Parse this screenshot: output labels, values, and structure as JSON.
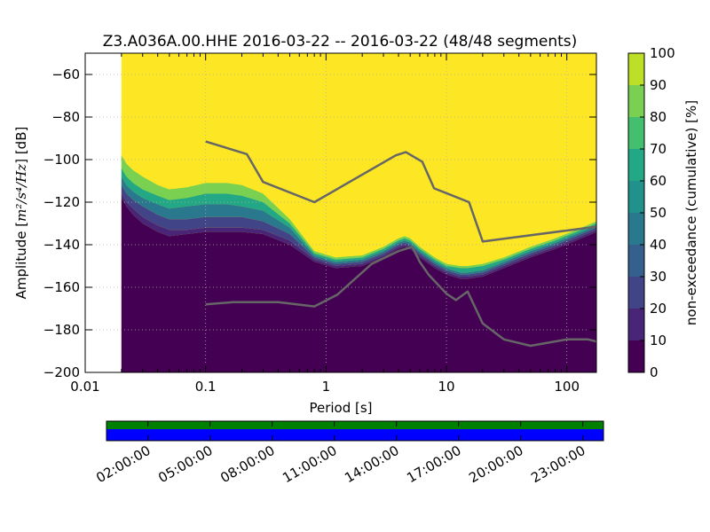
{
  "chart_data": {
    "type": "heatmap",
    "title": "Z3.A036A.00.HHE   2016-03-22 -- 2016-03-22  (48/48 segments)",
    "xlabel": "Period [s]",
    "ylabel_prefix": "Amplitude [",
    "ylabel_units": "m²/s⁴/Hz",
    "ylabel_suffix": "] [dB]",
    "x_scale": "log",
    "xlim": [
      0.01,
      176
    ],
    "ylim": [
      -200,
      -50
    ],
    "x_ticks": [
      {
        "value": 0.01,
        "label": "0.01"
      },
      {
        "value": 0.1,
        "label": "0.1"
      },
      {
        "value": 1,
        "label": "1"
      },
      {
        "value": 10,
        "label": "10"
      },
      {
        "value": 100,
        "label": "100"
      }
    ],
    "y_ticks": [
      {
        "value": -60,
        "label": "−60"
      },
      {
        "value": -80,
        "label": "−80"
      },
      {
        "value": -100,
        "label": "−100"
      },
      {
        "value": -120,
        "label": "−120"
      },
      {
        "value": -140,
        "label": "−140"
      },
      {
        "value": -160,
        "label": "−160"
      },
      {
        "value": -180,
        "label": "−180"
      },
      {
        "value": -200,
        "label": "−200"
      }
    ],
    "grid": true,
    "data_x_range": [
      0.02,
      176
    ],
    "colorbar": {
      "label": "non-exceedance (cumulative) [%]",
      "range": [
        0,
        100
      ],
      "ticks": [
        0,
        10,
        20,
        30,
        40,
        50,
        60,
        70,
        80,
        90,
        100
      ],
      "stops": [
        {
          "pct": 0,
          "color": "#440154"
        },
        {
          "pct": 10,
          "color": "#482576"
        },
        {
          "pct": 20,
          "color": "#414487"
        },
        {
          "pct": 30,
          "color": "#35608d"
        },
        {
          "pct": 40,
          "color": "#2a788e"
        },
        {
          "pct": 50,
          "color": "#21918c"
        },
        {
          "pct": 60,
          "color": "#22a884"
        },
        {
          "pct": 70,
          "color": "#44bf70"
        },
        {
          "pct": 80,
          "color": "#7ad151"
        },
        {
          "pct": 90,
          "color": "#bddf26"
        },
        {
          "pct": 100,
          "color": "#fde725"
        }
      ]
    },
    "percentile_bands": {
      "periods": [
        0.02,
        0.022,
        0.025,
        0.03,
        0.04,
        0.05,
        0.07,
        0.1,
        0.15,
        0.2,
        0.3,
        0.5,
        0.8,
        1.2,
        2,
        3,
        4,
        4.5,
        5,
        6,
        8,
        10,
        13,
        15,
        20,
        30,
        50,
        80,
        120,
        176
      ],
      "p0": [
        -118,
        -122,
        -126,
        -130,
        -134,
        -136,
        -135,
        -134,
        -134,
        -134,
        -135,
        -140,
        -148,
        -151,
        -150,
        -146,
        -142,
        -141,
        -142,
        -146,
        -151,
        -154,
        -156,
        -156,
        -155,
        -151,
        -146,
        -142,
        -138,
        -134
      ],
      "p10": [
        -116,
        -120,
        -123,
        -127,
        -131,
        -133,
        -133,
        -132,
        -132,
        -132,
        -133,
        -138,
        -147,
        -150,
        -149,
        -145,
        -141,
        -140,
        -141,
        -145,
        -150,
        -153,
        -155,
        -155,
        -154,
        -150,
        -145,
        -141,
        -137,
        -133
      ],
      "p30": [
        -112,
        -116,
        -119,
        -122,
        -126,
        -128,
        -128,
        -127,
        -127,
        -127,
        -129,
        -135,
        -146,
        -149,
        -148,
        -144,
        -140,
        -139,
        -140,
        -144,
        -149,
        -152,
        -154,
        -154,
        -153,
        -149,
        -144,
        -140,
        -136,
        -132
      ],
      "p50": [
        -108,
        -112,
        -115,
        -118,
        -121,
        -123,
        -122,
        -121,
        -121,
        -122,
        -124,
        -132,
        -145,
        -148,
        -147,
        -143,
        -139,
        -138,
        -139,
        -143,
        -148,
        -151,
        -153,
        -153,
        -152,
        -148,
        -143,
        -139,
        -135,
        -131
      ],
      "p70": [
        -104,
        -108,
        -111,
        -114,
        -117,
        -119,
        -118,
        -116,
        -116,
        -117,
        -120,
        -130,
        -144,
        -147,
        -146,
        -142,
        -138,
        -137,
        -138,
        -142,
        -147,
        -150,
        -151,
        -151,
        -150,
        -147,
        -142,
        -138,
        -134,
        -130
      ],
      "p90": [
        -98,
        -102,
        -105,
        -108,
        -112,
        -114,
        -113,
        -111,
        -111,
        -112,
        -116,
        -128,
        -143,
        -146,
        -145,
        -141,
        -137,
        -136,
        -137,
        -141,
        -146,
        -149,
        -150,
        -150,
        -149,
        -146,
        -141,
        -137,
        -133,
        -129
      ]
    },
    "series": [
      {
        "name": "",
        "color": "#666666",
        "x": [
          0.1,
          0.22,
          0.3,
          0.8,
          3.8,
          4.6,
          6.3,
          7.9,
          15.4,
          20,
          176
        ],
        "y": [
          -91.5,
          -97.4,
          -110.5,
          -120,
          -98,
          -96.5,
          -101,
          -113.5,
          -120,
          -138.5,
          -131.5
        ]
      },
      {
        "name": "",
        "color": "#666666",
        "x": [
          0.1,
          0.17,
          0.4,
          0.8,
          1.24,
          2.4,
          4,
          5.2,
          6,
          7.1,
          10,
          12,
          15,
          20,
          30,
          50,
          100,
          150,
          176
        ],
        "y": [
          -168,
          -167,
          -167,
          -169,
          -163.5,
          -149,
          -143,
          -141,
          -148,
          -154,
          -163,
          -166,
          -162,
          -177,
          -184.5,
          -187.5,
          -184.5,
          -184.5,
          -185.5
        ]
      }
    ]
  },
  "timeline": {
    "tick_labels": [
      "02:00:00",
      "05:00:00",
      "08:00:00",
      "11:00:00",
      "14:00:00",
      "17:00:00",
      "20:00:00",
      "23:00:00"
    ],
    "coverage_color": "#008000",
    "data_color": "#0000ff"
  }
}
